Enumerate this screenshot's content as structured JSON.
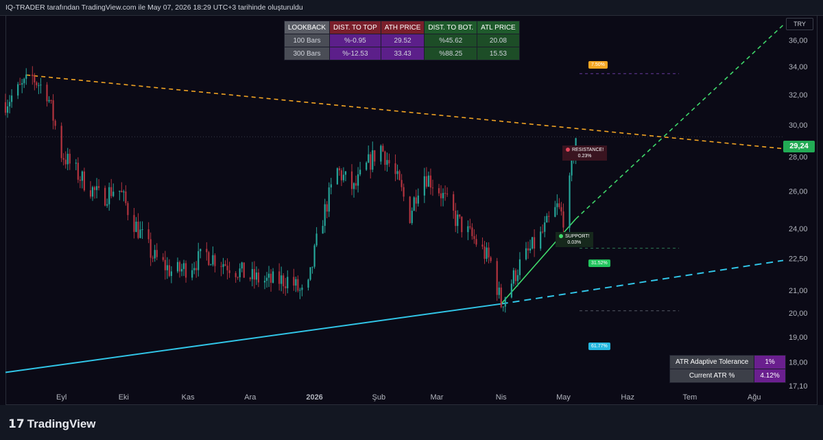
{
  "header": {
    "title": "IQ-TRADER tarafından TradingView.com ile May 07, 2026 18:29 UTC+3 tarihinde oluşturuldu"
  },
  "footer": {
    "brand": "TradingView"
  },
  "currency": "TRY",
  "current_price": "29,24",
  "colors": {
    "bull": "#26a69a",
    "bear": "#b4343f",
    "resistance": "#f5a623",
    "support_steep": "#3fd96b",
    "support_base": "#31c6e8",
    "price_tag": "#22ab55"
  },
  "stats_table": {
    "headers": [
      "LOOKBACK",
      "DIST. TO TOP",
      "ATH PRICE",
      "DIST. TO BOT.",
      "ATL PRICE"
    ],
    "rows": [
      [
        "100 Bars",
        "%-0.95",
        "29.52",
        "%45.62",
        "20.08"
      ],
      [
        "300 Bars",
        "%-12.53",
        "33.43",
        "%88.25",
        "15.53"
      ]
    ]
  },
  "atr_table": {
    "rows": [
      [
        "ATR Adaptive Tolerance",
        "1%"
      ],
      [
        "Current ATR %",
        "4.12%"
      ]
    ]
  },
  "labels": {
    "resistance": {
      "title": "RESISTANCE!",
      "value": "0.23%"
    },
    "support": {
      "title": "SUPPORT!",
      "value": "0.03%"
    },
    "target_up": "7.50%",
    "target_mid": "31.52%",
    "target_low": "61.77%"
  },
  "chart_data": {
    "type": "candlestick",
    "y_axis": {
      "ticks": [
        "36,00",
        "34,00",
        "32,00",
        "30,00",
        "28,00",
        "26,00",
        "24,00",
        "22,50",
        "21,00",
        "20,00",
        "19,00",
        "18,00",
        "17,10"
      ],
      "tick_values": [
        36,
        34,
        32,
        30,
        28,
        26,
        24,
        22.5,
        21,
        20,
        19,
        18,
        17.1
      ],
      "scale": "log"
    },
    "x_axis": {
      "ticks": [
        "Eyl",
        "Eki",
        "Kas",
        "Ara",
        "2026",
        "Şub",
        "Mar",
        "Nis",
        "May",
        "Haz",
        "Tem",
        "Ağu"
      ],
      "tick_positions": [
        "2025-09-01",
        "2025-10-01",
        "2025-11-01",
        "2025-12-01",
        "2026-01-01",
        "2026-02-01",
        "2026-03-01",
        "2026-04-01",
        "2026-05-01",
        "2026-06-01",
        "2026-07-01",
        "2026-08-01"
      ],
      "range": [
        "2025-08-05",
        "2026-08-15"
      ]
    },
    "close_path": [
      [
        "2025-08-05",
        31.5
      ],
      [
        "2025-08-18",
        33.2
      ],
      [
        "2025-08-25",
        32.2
      ],
      [
        "2025-09-01",
        28.2
      ],
      [
        "2025-09-10",
        26.8
      ],
      [
        "2025-09-20",
        25.6
      ],
      [
        "2025-09-28",
        26.3
      ],
      [
        "2025-10-05",
        24.5
      ],
      [
        "2025-10-15",
        22.6
      ],
      [
        "2025-10-25",
        21.8
      ],
      [
        "2025-11-01",
        22.1
      ],
      [
        "2025-11-10",
        22.7
      ],
      [
        "2025-11-20",
        22.2
      ],
      [
        "2025-12-01",
        21.6
      ],
      [
        "2025-12-10",
        21.4
      ],
      [
        "2025-12-20",
        21.5
      ],
      [
        "2025-12-28",
        20.6
      ],
      [
        "2026-01-03",
        23.8
      ],
      [
        "2026-01-12",
        27.2
      ],
      [
        "2026-01-20",
        26.1
      ],
      [
        "2026-01-27",
        27.6
      ],
      [
        "2026-02-02",
        28.6
      ],
      [
        "2026-02-10",
        26.6
      ],
      [
        "2026-02-16",
        24.7
      ],
      [
        "2026-02-22",
        27.1
      ],
      [
        "2026-03-02",
        26.1
      ],
      [
        "2026-03-10",
        24.5
      ],
      [
        "2026-03-20",
        23.3
      ],
      [
        "2026-03-27",
        22.3
      ],
      [
        "2026-04-01",
        20.4
      ],
      [
        "2026-04-10",
        22.2
      ],
      [
        "2026-04-20",
        23.6
      ],
      [
        "2026-04-28",
        25.1
      ],
      [
        "2026-05-02",
        24.4
      ],
      [
        "2026-05-07",
        29.24
      ]
    ],
    "trendlines": [
      {
        "role": "resistance",
        "from": [
          "2025-08-15",
          33.4
        ],
        "to": [
          "2026-08-15",
          28.5
        ]
      },
      {
        "role": "support_base",
        "from": [
          "2025-08-05",
          17.6
        ],
        "to": [
          "2026-04-01",
          20.4
        ],
        "extend_to": [
          "2026-08-15",
          22.4
        ]
      },
      {
        "role": "support_steep",
        "from": [
          "2026-04-01",
          20.4
        ],
        "to": [
          "2026-05-07",
          24.5
        ],
        "extend_to": [
          "2026-08-15",
          37.2
        ]
      }
    ]
  }
}
